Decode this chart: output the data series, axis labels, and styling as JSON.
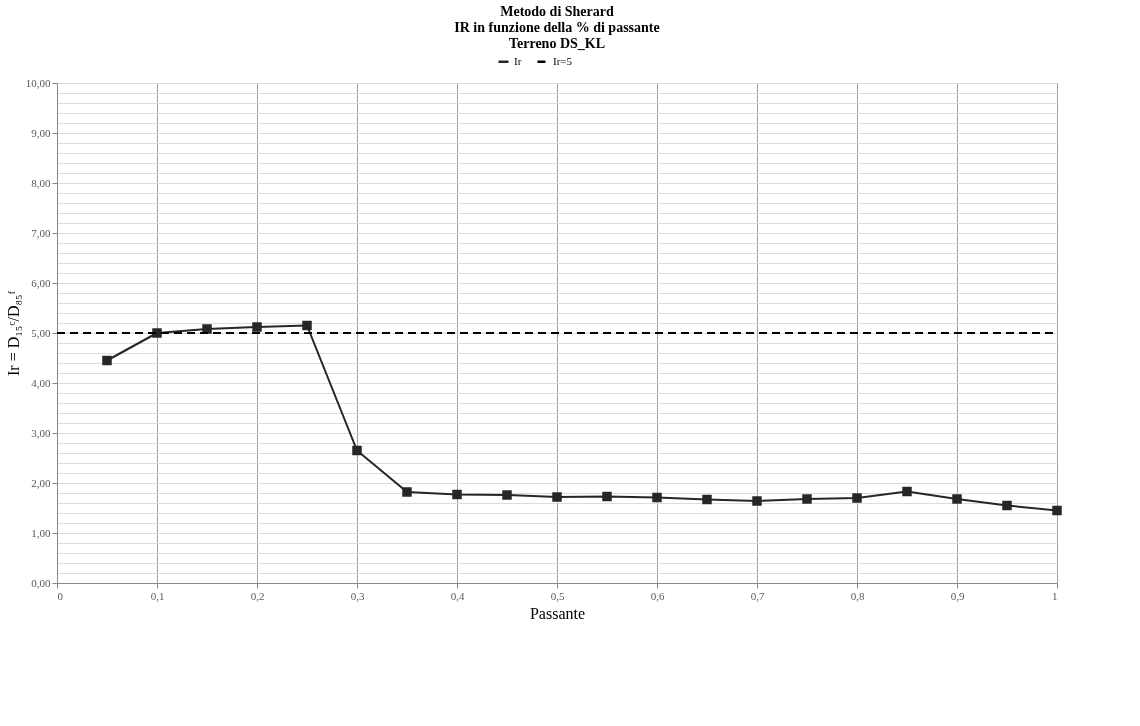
{
  "chart_data": {
    "type": "line",
    "title": "Metodo di Sherard\nIR in funzione della % di passante\nTerreno DS_KL",
    "xlabel": "Passante",
    "ylabel": "Ir = D₁₅ᶜ/D₈₅ᶠ",
    "x": [
      0.05,
      0.1,
      0.15,
      0.2,
      0.25,
      0.3,
      0.35,
      0.4,
      0.45,
      0.5,
      0.55,
      0.6,
      0.65,
      0.7,
      0.75,
      0.8,
      0.85,
      0.9,
      0.95,
      1.0
    ],
    "series": [
      {
        "name": "Ir",
        "color": "#262626",
        "values": [
          4.45,
          5.0,
          5.08,
          5.12,
          5.15,
          2.65,
          1.82,
          1.77,
          1.76,
          1.72,
          1.73,
          1.71,
          1.67,
          1.64,
          1.68,
          1.7,
          1.83,
          1.68,
          1.55,
          1.45
        ]
      }
    ],
    "ref_lines": [
      {
        "axis": "y",
        "value": 5,
        "label": "Ir=5",
        "color": "#000000",
        "line_style": "dashed"
      }
    ],
    "marker": "square",
    "line_style": "solid",
    "grid": true,
    "legend": "top",
    "xlim": [
      0,
      1
    ],
    "ylim": [
      0,
      10
    ],
    "xticks": [
      {
        "value": 0,
        "label": "0"
      },
      {
        "value": 0.1,
        "label": "0,1"
      },
      {
        "value": 0.2,
        "label": "0,2"
      },
      {
        "value": 0.3,
        "label": "0,3"
      },
      {
        "value": 0.4,
        "label": "0,4"
      },
      {
        "value": 0.5,
        "label": "0,5"
      },
      {
        "value": 0.6,
        "label": "0,6"
      },
      {
        "value": 0.7,
        "label": "0,7"
      },
      {
        "value": 0.8,
        "label": "0,8"
      },
      {
        "value": 0.9,
        "label": "0,9"
      },
      {
        "value": 1,
        "label": "1"
      }
    ],
    "yticks": [
      {
        "value": 0,
        "label": "0,00"
      },
      {
        "value": 1,
        "label": "1,00"
      },
      {
        "value": 2,
        "label": "2,00"
      },
      {
        "value": 3,
        "label": "3,00"
      },
      {
        "value": 4,
        "label": "4,00"
      },
      {
        "value": 5,
        "label": "5,00"
      },
      {
        "value": 6,
        "label": "6,00"
      },
      {
        "value": 7,
        "label": "7,00"
      },
      {
        "value": 8,
        "label": "8,00"
      },
      {
        "value": 9,
        "label": "9,00"
      },
      {
        "value": 10,
        "label": "10,00"
      }
    ]
  }
}
